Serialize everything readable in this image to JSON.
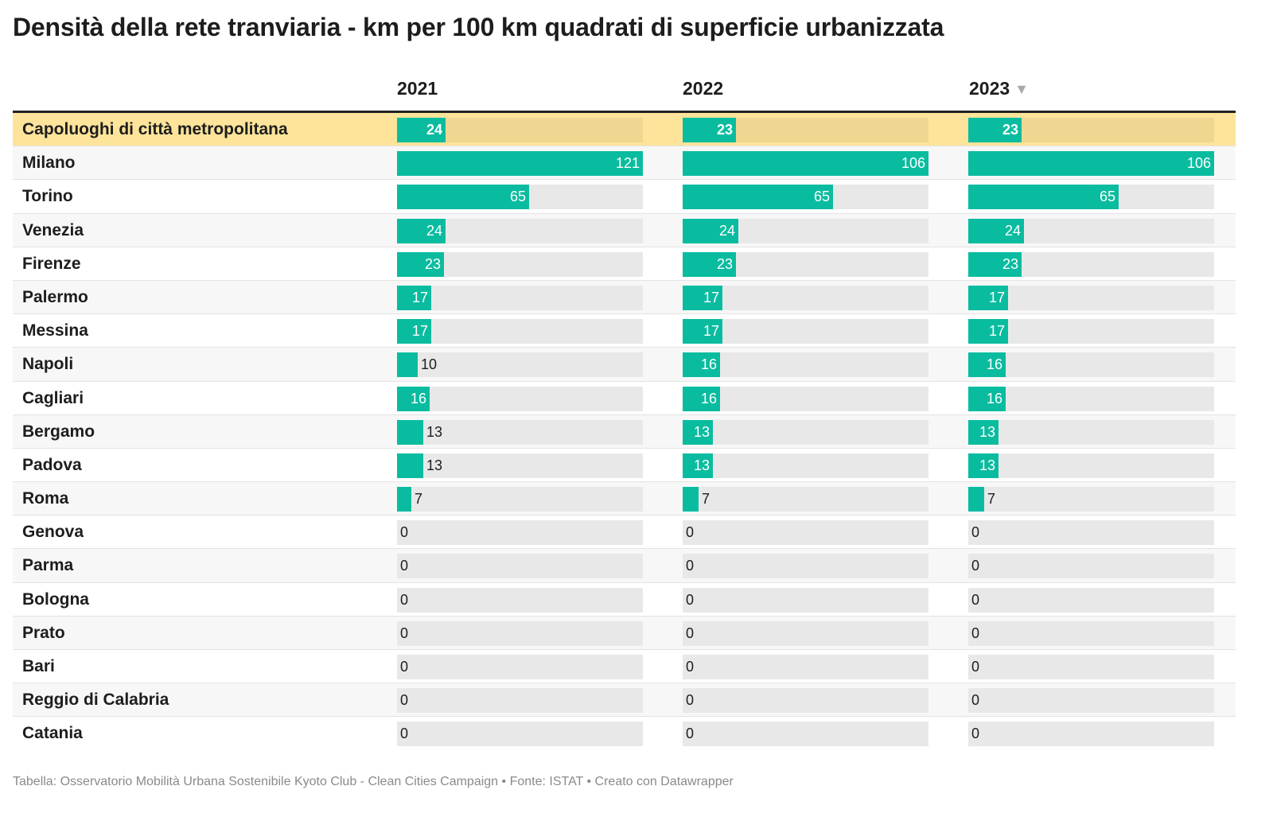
{
  "title": "Densità della rete tranviaria - km per 100 km quadrati di superficie urbanizzata",
  "footer": "Tabella: Osservatorio Mobilità Urbana Sostenibile Kyoto Club - Clean Cities Campaign • Fonte: ISTAT • Creato con Datawrapper",
  "colors": {
    "bar": "#0abc9f",
    "bar_track": "#e8e8e8",
    "highlight_row": "#fde49a",
    "highlight_track": "#efd792"
  },
  "sort_icon": "triangle-down-icon",
  "chart_data": {
    "type": "table",
    "title": "Densità della rete tranviaria - km per 100 km quadrati di superficie urbanizzata",
    "columns": [
      "2021",
      "2022",
      "2023"
    ],
    "sorted_by": "2023",
    "sort_order": "descending",
    "bar_max": [
      121,
      106,
      106
    ],
    "rows": [
      {
        "name": "Capoluoghi di città metropolitana",
        "values": [
          24,
          23,
          23
        ],
        "highlight": true
      },
      {
        "name": "Milano",
        "values": [
          121,
          106,
          106
        ]
      },
      {
        "name": "Torino",
        "values": [
          65,
          65,
          65
        ]
      },
      {
        "name": "Venezia",
        "values": [
          24,
          24,
          24
        ]
      },
      {
        "name": "Firenze",
        "values": [
          23,
          23,
          23
        ]
      },
      {
        "name": "Palermo",
        "values": [
          17,
          17,
          17
        ]
      },
      {
        "name": "Messina",
        "values": [
          17,
          17,
          17
        ]
      },
      {
        "name": "Napoli",
        "values": [
          10,
          16,
          16
        ]
      },
      {
        "name": "Cagliari",
        "values": [
          16,
          16,
          16
        ]
      },
      {
        "name": "Bergamo",
        "values": [
          13,
          13,
          13
        ]
      },
      {
        "name": "Padova",
        "values": [
          13,
          13,
          13
        ]
      },
      {
        "name": "Roma",
        "values": [
          7,
          7,
          7
        ]
      },
      {
        "name": "Genova",
        "values": [
          0,
          0,
          0
        ]
      },
      {
        "name": "Parma",
        "values": [
          0,
          0,
          0
        ]
      },
      {
        "name": "Bologna",
        "values": [
          0,
          0,
          0
        ]
      },
      {
        "name": "Prato",
        "values": [
          0,
          0,
          0
        ]
      },
      {
        "name": "Bari",
        "values": [
          0,
          0,
          0
        ]
      },
      {
        "name": "Reggio di Calabria",
        "values": [
          0,
          0,
          0
        ]
      },
      {
        "name": "Catania",
        "values": [
          0,
          0,
          0
        ]
      }
    ]
  }
}
